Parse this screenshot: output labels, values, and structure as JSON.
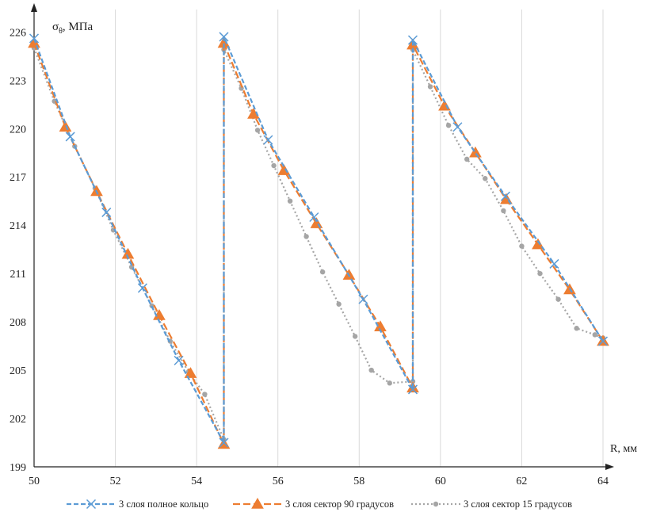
{
  "chart_data": {
    "type": "line",
    "ylabel_main": "σ",
    "ylabel_sub": "θ",
    "ylabel_rest": ", МПа",
    "xlabel": "R, мм",
    "xlim": [
      50,
      64
    ],
    "ylim": [
      199,
      227
    ],
    "xticks": [
      "50",
      "52",
      "54",
      "56",
      "58",
      "60",
      "62",
      "64"
    ],
    "yticks": [
      "199",
      "202",
      "205",
      "208",
      "211",
      "214",
      "217",
      "220",
      "223",
      "226"
    ],
    "grid": "vertical",
    "legend_position": "bottom",
    "series": [
      {
        "name": "3 слоя полное кольцо",
        "color": "#5B9BD5",
        "marker": "x",
        "dash": "6 3",
        "x": [
          50.0,
          50.89,
          51.78,
          52.67,
          53.56,
          54.67,
          54.67,
          55.76,
          56.89,
          58.1,
          59.32,
          59.32,
          60.42,
          61.6,
          62.8,
          64.0
        ],
        "y": [
          225.6,
          219.5,
          214.8,
          210.1,
          205.6,
          200.5,
          225.7,
          219.3,
          214.5,
          209.4,
          203.8,
          225.5,
          220.1,
          215.8,
          211.6,
          206.8
        ]
      },
      {
        "name": "3 слоя сектор 90 градусов",
        "color": "#ED7D31",
        "marker": "triangle",
        "dash": "9 4",
        "x": [
          50.0,
          50.77,
          51.54,
          52.31,
          53.08,
          53.85,
          54.67,
          54.67,
          55.4,
          56.15,
          56.95,
          57.75,
          58.52,
          59.32,
          59.32,
          60.1,
          60.86,
          61.62,
          62.4,
          63.18,
          64.0
        ],
        "y": [
          225.3,
          220.1,
          216.1,
          212.2,
          208.4,
          204.8,
          200.4,
          225.3,
          220.9,
          217.4,
          214.1,
          210.9,
          207.7,
          203.9,
          225.2,
          221.4,
          218.5,
          215.6,
          212.8,
          210.0,
          206.8
        ]
      },
      {
        "name": "3 слоя сектор 15 градусов",
        "color": "#A5A5A5",
        "marker": "dot",
        "dash": "2 3",
        "x": [
          50.0,
          50.5,
          51.0,
          51.5,
          51.95,
          52.4,
          52.9,
          53.35,
          53.8,
          54.2,
          54.67,
          54.67,
          55.1,
          55.5,
          55.9,
          56.3,
          56.7,
          57.1,
          57.5,
          57.9,
          58.3,
          58.75,
          59.32,
          59.32,
          59.75,
          60.2,
          60.65,
          61.1,
          61.55,
          62.0,
          62.45,
          62.9,
          63.35,
          63.8,
          64.0
        ],
        "y": [
          225.0,
          221.7,
          218.9,
          216.3,
          213.7,
          211.4,
          209.0,
          206.8,
          204.9,
          203.5,
          200.7,
          224.9,
          222.5,
          219.9,
          217.7,
          215.5,
          213.3,
          211.1,
          209.1,
          207.1,
          205.0,
          204.2,
          204.3,
          224.9,
          222.6,
          220.2,
          218.1,
          216.9,
          214.9,
          212.7,
          211.0,
          209.4,
          207.6,
          207.2,
          207.0
        ]
      }
    ]
  }
}
